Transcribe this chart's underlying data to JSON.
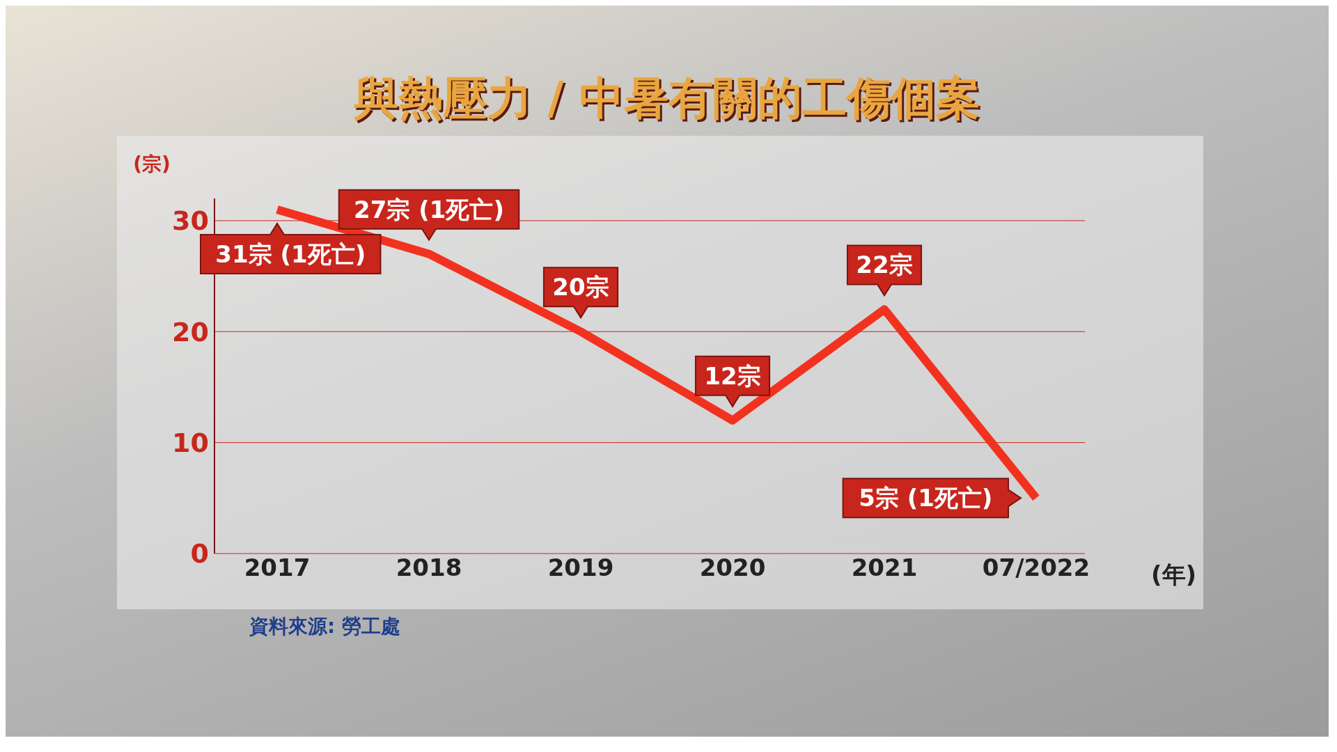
{
  "chart_data": {
    "type": "line",
    "title": "與熱壓力 / 中暑有關的工傷個案",
    "xlabel": "(年)",
    "ylabel": "(宗)",
    "categories": [
      "2017",
      "2018",
      "2019",
      "2020",
      "2021",
      "07/2022"
    ],
    "series": [
      {
        "color": "#f2321e",
        "values": [
          31,
          27,
          20,
          12,
          22,
          5
        ],
        "value_labels": [
          "31宗 (1死亡)",
          "27宗 (1死亡)",
          "20宗",
          "12宗",
          "22宗",
          "5宗 (1死亡)"
        ]
      }
    ],
    "ylim": [
      0,
      32
    ],
    "yticks": [
      0,
      10,
      20,
      30
    ],
    "grid": "y",
    "legend": false,
    "marker": "none",
    "line_style": "solid",
    "annotations": [
      "資料來源: 勞工處"
    ]
  }
}
